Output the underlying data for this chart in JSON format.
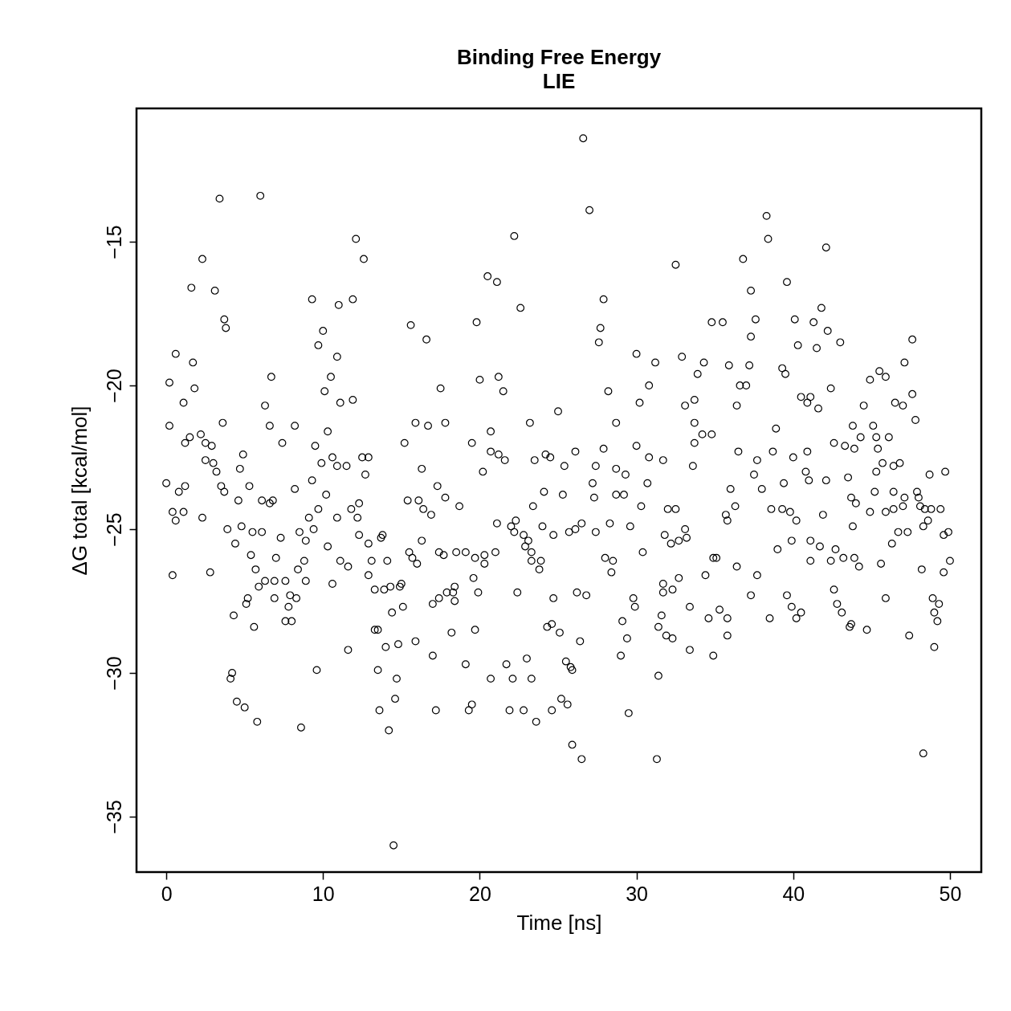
{
  "chart_data": {
    "type": "scatter",
    "title": "Binding Free Energy",
    "subtitle": "LIE",
    "xlabel": "Time [ns]",
    "ylabel": "ΔG total [kcal/mol]",
    "marker": "circle",
    "xlim": [
      -1.9,
      52.0
    ],
    "ylim": [
      -36.93,
      -10.36
    ],
    "xticks": [
      0,
      10,
      20,
      30,
      40,
      50
    ],
    "yticks": [
      -35,
      -30,
      -25,
      -20,
      -15
    ],
    "x": [
      26.6,
      3.4,
      6.0,
      27.0,
      38.3,
      22.2,
      12.1,
      38.4,
      42.1,
      2.3,
      12.6,
      36.8,
      32.5,
      1.6,
      3.1,
      20.5,
      21.1,
      39.6,
      37.3,
      9.3,
      11.9,
      11.0,
      27.9,
      22.6,
      41.8,
      3.7,
      3.8,
      15.6,
      19.8,
      27.7,
      35.5,
      37.6,
      40.1,
      41.3,
      34.8,
      10.0,
      42.2,
      37.3,
      16.6,
      27.6,
      43.0,
      47.6,
      9.7,
      40.3,
      41.5,
      0.6,
      30.0,
      32.9,
      10.9,
      1.7,
      34.3,
      31.2,
      37.2,
      35.9,
      47.1,
      39.3,
      45.5,
      33.9,
      21.2,
      6.7,
      45.9,
      39.5,
      44.9,
      10.5,
      0.2,
      20.0,
      36.6,
      37.0,
      30.8,
      1.8,
      17.5,
      42.4,
      10.1,
      21.5,
      28.2,
      47.6,
      33.7,
      11.9,
      40.5,
      41.1,
      44.5,
      46.5,
      6.3,
      1.1,
      30.2,
      33.1,
      47.0,
      40.9,
      41.6,
      11.1,
      36.4,
      47.8,
      3.6,
      6.6,
      8.2,
      0.2,
      16.7,
      15.9,
      17.8,
      23.2,
      25.0,
      28.7,
      43.8,
      45.1,
      38.9,
      33.7,
      2.2,
      1.5,
      10.3,
      20.7,
      34.2,
      34.8,
      44.3,
      45.3,
      46.1,
      2.5,
      1.2,
      2.9,
      15.2,
      19.5,
      7.4,
      42.6,
      43.3,
      9.5,
      30.0,
      33.7,
      4.9,
      20.7,
      26.1,
      27.9,
      36.5,
      38.7,
      40.9,
      43.9,
      45.4,
      30.8,
      31.7,
      10.6,
      12.5,
      12.9,
      21.2,
      21.6,
      24.2,
      24.5,
      37.7,
      40.0,
      2.5,
      3.0,
      9.9,
      10.9,
      11.5,
      23.5,
      25.4,
      27.4,
      33.6,
      45.7,
      46.8,
      46.4,
      4.7,
      16.3,
      28.7,
      40.8,
      3.2,
      45.3,
      49.7,
      12.7,
      20.2,
      29.3,
      37.5,
      48.7,
      42.1,
      41.0,
      0.0,
      9.3,
      30.7,
      43.5,
      27.2,
      1.2,
      3.5,
      5.3,
      17.3,
      38.0,
      39.4,
      3.7,
      45.2,
      46.4,
      24.1,
      36.0,
      8.2,
      10.2,
      0.8,
      17.8,
      25.3,
      28.7,
      29.2,
      47.9,
      48.0,
      43.7,
      6.1,
      4.6,
      27.3,
      47.1,
      6.6,
      6.8,
      12.3,
      15.4,
      16.1,
      44.0,
      47.0,
      18.7,
      23.4,
      30.3,
      9.7,
      11.8,
      48.1,
      48.4,
      48.8,
      32.0,
      32.5,
      45.9,
      44.9,
      49.4,
      36.3,
      38.6,
      39.3,
      0.4,
      1.1,
      16.4,
      46.4,
      41.9,
      35.7,
      39.8,
      9.1,
      10.9,
      12.2,
      16.9,
      2.3,
      0.6,
      35.8,
      22.3,
      40.2,
      48.6,
      26.5,
      28.3,
      21.1,
      4.8,
      24.0,
      29.6,
      43.8,
      48.3,
      22.0,
      26.1,
      22.2,
      33.1,
      3.9,
      9.4,
      25.7,
      27.4,
      5.5,
      6.1,
      8.5,
      49.6,
      49.9,
      12.3,
      13.8,
      22.8,
      24.7,
      31.8,
      32.7,
      33.2,
      46.7,
      47.3,
      41.1,
      39.9,
      7.3,
      13.7,
      16.3,
      23.1,
      12.9,
      4.4,
      8.9,
      32.2,
      46.3,
      41.7,
      22.9,
      39.0,
      10.3,
      42.7,
      15.5,
      17.4,
      30.4,
      18.5,
      17.7,
      19.1,
      21.0,
      23.3,
      43.2,
      5.4,
      19.7,
      20.3,
      34.9,
      35.1,
      43.9,
      7.0,
      15.7,
      23.9,
      50.0,
      41.1,
      42.4,
      28.0,
      28.5,
      11.1,
      14.1,
      16.0,
      8.8,
      13.1,
      20.3,
      23.3,
      45.6,
      36.4,
      44.2,
      11.6,
      5.7,
      8.4,
      23.8,
      34.4,
      48.2,
      49.6,
      28.4,
      0.4,
      2.8,
      12.9,
      19.6,
      37.7,
      32.7,
      10.6,
      6.3,
      6.9,
      7.6,
      8.9,
      31.7,
      18.4,
      5.9,
      14.3,
      14.9,
      15.0,
      32.3,
      13.3,
      13.9,
      42.6,
      18.3,
      19.9,
      22.4,
      31.7,
      26.2,
      7.9,
      17.9,
      26.8,
      37.3,
      39.6,
      45.9,
      29.8,
      48.9,
      8.3,
      6.9,
      5.2,
      17.4,
      18.4,
      24.7,
      49.3,
      17.0,
      5.1,
      15.1,
      7.8,
      42.8,
      39.9,
      33.4,
      29.9,
      35.3,
      49.0,
      14.4,
      43.1,
      40.5,
      4.3,
      40.2,
      31.6,
      38.5,
      34.6,
      7.6,
      35.8,
      8.0,
      49.2,
      29.1,
      24.6,
      24.3,
      43.7,
      43.6,
      5.6,
      31.4,
      44.7,
      13.3,
      13.5,
      19.7,
      25.1,
      18.2,
      35.8,
      47.4,
      31.9,
      32.3,
      29.4,
      26.4,
      15.9,
      14.8,
      14.0,
      49.0,
      11.6,
      33.4,
      34.9,
      29.0,
      17.0,
      23.0,
      25.5,
      25.8,
      25.9,
      19.1,
      21.7,
      9.6,
      13.5,
      4.2,
      4.1,
      14.7,
      20.7,
      22.1,
      23.3,
      31.4,
      25.2,
      14.6,
      19.5,
      4.5,
      5.0,
      25.6,
      17.2,
      19.3,
      21.9,
      22.8,
      13.6,
      24.6,
      29.5,
      23.6,
      5.8,
      8.6,
      14.2,
      25.9,
      48.3,
      31.3,
      26.5,
      14.5
    ],
    "values": [
      -11.4,
      -13.5,
      -13.4,
      -13.9,
      -14.1,
      -14.8,
      -14.9,
      -14.9,
      -15.2,
      -15.6,
      -15.6,
      -15.6,
      -15.8,
      -16.6,
      -16.7,
      -16.2,
      -16.4,
      -16.4,
      -16.7,
      -17.0,
      -17.0,
      -17.2,
      -17.0,
      -17.3,
      -17.3,
      -17.7,
      -18.0,
      -17.9,
      -17.8,
      -18.0,
      -17.8,
      -17.7,
      -17.7,
      -17.8,
      -17.8,
      -18.1,
      -18.1,
      -18.3,
      -18.4,
      -18.5,
      -18.5,
      -18.4,
      -18.6,
      -18.6,
      -18.7,
      -18.9,
      -18.9,
      -19.0,
      -19.0,
      -19.2,
      -19.2,
      -19.2,
      -19.3,
      -19.3,
      -19.2,
      -19.4,
      -19.5,
      -19.6,
      -19.7,
      -19.7,
      -19.7,
      -19.6,
      -19.8,
      -19.7,
      -19.9,
      -19.8,
      -20.0,
      -20.0,
      -20.0,
      -20.1,
      -20.1,
      -20.1,
      -20.2,
      -20.2,
      -20.2,
      -20.3,
      -20.5,
      -20.5,
      -20.4,
      -20.4,
      -20.7,
      -20.6,
      -20.7,
      -20.6,
      -20.6,
      -20.7,
      -20.7,
      -20.6,
      -20.8,
      -20.6,
      -20.7,
      -21.2,
      -21.3,
      -21.4,
      -21.4,
      -21.4,
      -21.4,
      -21.3,
      -21.3,
      -21.3,
      -20.9,
      -21.3,
      -21.4,
      -21.4,
      -21.5,
      -21.3,
      -21.7,
      -21.8,
      -21.6,
      -21.6,
      -21.7,
      -21.7,
      -21.8,
      -21.8,
      -21.8,
      -22.0,
      -22.0,
      -22.1,
      -22.0,
      -22.0,
      -22.0,
      -22.0,
      -22.1,
      -22.1,
      -22.1,
      -22.0,
      -22.4,
      -22.3,
      -22.3,
      -22.2,
      -22.3,
      -22.3,
      -22.3,
      -22.2,
      -22.2,
      -22.5,
      -22.6,
      -22.5,
      -22.5,
      -22.5,
      -22.4,
      -22.6,
      -22.4,
      -22.5,
      -22.6,
      -22.5,
      -22.6,
      -22.7,
      -22.7,
      -22.8,
      -22.8,
      -22.6,
      -22.8,
      -22.8,
      -22.8,
      -22.7,
      -22.7,
      -22.8,
      -22.9,
      -22.9,
      -22.9,
      -23.0,
      -23.0,
      -23.0,
      -23.0,
      -23.1,
      -23.0,
      -23.1,
      -23.1,
      -23.1,
      -23.3,
      -23.3,
      -23.4,
      -23.3,
      -23.4,
      -23.2,
      -23.4,
      -23.5,
      -23.5,
      -23.5,
      -23.5,
      -23.6,
      -23.4,
      -23.7,
      -23.7,
      -23.7,
      -23.7,
      -23.6,
      -23.6,
      -23.8,
      -23.7,
      -23.9,
      -23.8,
      -23.8,
      -23.8,
      -23.7,
      -23.9,
      -23.9,
      -24.0,
      -24.0,
      -23.9,
      -23.9,
      -24.1,
      -24.0,
      -24.1,
      -24.0,
      -24.0,
      -24.1,
      -24.2,
      -24.2,
      -24.2,
      -24.2,
      -24.3,
      -24.3,
      -24.2,
      -24.3,
      -24.3,
      -24.3,
      -24.3,
      -24.4,
      -24.4,
      -24.3,
      -24.2,
      -24.3,
      -24.3,
      -24.4,
      -24.4,
      -24.3,
      -24.3,
      -24.5,
      -24.5,
      -24.4,
      -24.6,
      -24.6,
      -24.6,
      -24.5,
      -24.6,
      -24.7,
      -24.7,
      -24.7,
      -24.7,
      -24.7,
      -24.8,
      -24.8,
      -24.8,
      -24.9,
      -24.9,
      -24.9,
      -24.9,
      -24.9,
      -24.9,
      -25.0,
      -25.1,
      -25.0,
      -25.0,
      -25.0,
      -25.1,
      -25.1,
      -25.1,
      -25.1,
      -25.1,
      -25.2,
      -25.1,
      -25.2,
      -25.2,
      -25.2,
      -25.2,
      -25.2,
      -25.4,
      -25.3,
      -25.1,
      -25.1,
      -25.4,
      -25.4,
      -25.3,
      -25.3,
      -25.4,
      -25.4,
      -25.5,
      -25.5,
      -25.4,
      -25.5,
      -25.5,
      -25.6,
      -25.6,
      -25.7,
      -25.6,
      -25.7,
      -25.8,
      -25.8,
      -25.8,
      -25.8,
      -25.9,
      -25.8,
      -25.8,
      -25.8,
      -26.0,
      -25.9,
      -26.0,
      -25.9,
      -26.0,
      -26.0,
      -26.0,
      -26.0,
      -26.0,
      -26.1,
      -26.1,
      -26.1,
      -26.1,
      -26.0,
      -26.1,
      -26.1,
      -26.1,
      -26.2,
      -26.1,
      -26.1,
      -26.2,
      -26.1,
      -26.2,
      -26.3,
      -26.3,
      -26.3,
      -26.4,
      -26.4,
      -26.4,
      -26.6,
      -26.4,
      -26.5,
      -26.5,
      -26.6,
      -26.5,
      -26.6,
      -26.7,
      -26.6,
      -26.7,
      -26.9,
      -26.8,
      -26.8,
      -26.8,
      -26.8,
      -26.9,
      -27.0,
      -27.0,
      -27.0,
      -27.0,
      -26.9,
      -27.1,
      -27.1,
      -27.1,
      -27.1,
      -27.2,
      -27.2,
      -27.2,
      -27.2,
      -27.2,
      -27.3,
      -27.2,
      -27.3,
      -27.3,
      -27.3,
      -27.4,
      -27.4,
      -27.4,
      -27.4,
      -27.4,
      -27.4,
      -27.4,
      -27.5,
      -27.4,
      -27.6,
      -27.6,
      -27.6,
      -27.7,
      -27.7,
      -27.6,
      -27.7,
      -27.7,
      -27.7,
      -27.8,
      -27.9,
      -27.9,
      -27.9,
      -27.9,
      -28.0,
      -28.1,
      -28.0,
      -28.1,
      -28.1,
      -28.2,
      -28.1,
      -28.2,
      -28.2,
      -28.2,
      -28.3,
      -28.4,
      -28.3,
      -28.4,
      -28.4,
      -28.4,
      -28.5,
      -28.5,
      -28.5,
      -28.5,
      -28.6,
      -28.6,
      -28.7,
      -28.7,
      -28.7,
      -28.8,
      -28.8,
      -28.9,
      -28.9,
      -29.0,
      -29.1,
      -29.1,
      -29.2,
      -29.2,
      -29.4,
      -29.4,
      -29.4,
      -29.5,
      -29.6,
      -29.8,
      -29.9,
      -29.7,
      -29.7,
      -29.9,
      -29.9,
      -30.0,
      -30.2,
      -30.2,
      -30.2,
      -30.2,
      -30.2,
      -30.1,
      -30.9,
      -30.9,
      -31.1,
      -31.0,
      -31.2,
      -31.1,
      -31.3,
      -31.3,
      -31.3,
      -31.3,
      -31.3,
      -31.3,
      -31.4,
      -31.7,
      -31.7,
      -31.9,
      -32.0,
      -32.5,
      -32.8,
      -33.0,
      -33.0,
      -36.0
    ]
  }
}
